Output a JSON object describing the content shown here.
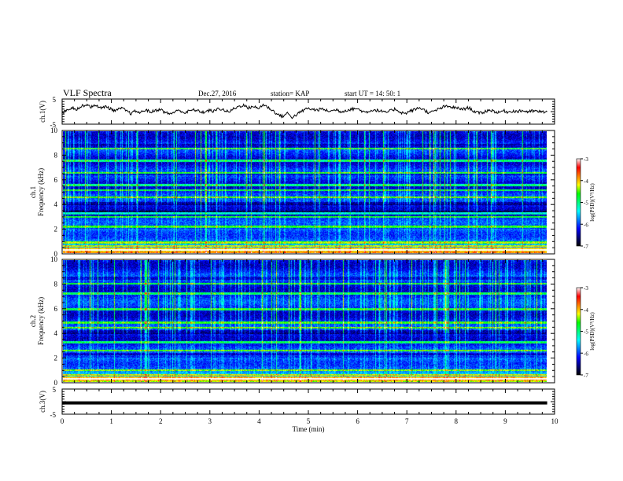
{
  "header": {
    "title": "VLF Spectra",
    "date": "Dec.27, 2016",
    "station": "station= KAP",
    "start": "start  UT =   14: 50: 1"
  },
  "chart_data": [
    {
      "type": "line",
      "panel": "ch.1 waveform",
      "ylabel": "ch.1(V)",
      "ylim": [
        -5,
        5
      ],
      "yticks": [
        "5",
        "-5"
      ],
      "series": [
        {
          "values": [
            -0.6,
            0.8,
            1.6,
            1.0,
            2.1,
            2.9,
            1.8,
            2.6,
            1.2,
            2.2,
            0.9,
            0.3,
            1.4,
            0.5,
            -0.8,
            0.2,
            -0.5,
            0.8,
            -0.2,
            0.4,
            1.0,
            -0.4,
            -0.9,
            -0.1,
            0.6,
            -0.6,
            0.3,
            0.7,
            0.1,
            -0.3,
            0.5,
            0.1,
            1.3,
            0.6,
            -0.2,
            1.1,
            2.0,
            2.6,
            1.4,
            2.2,
            1.1,
            2.8,
            1.7,
            0.4,
            -1.2,
            -1.9,
            -0.6,
            -2.3,
            -1.0,
            0.2,
            1.3,
            0.9,
            0.6,
            1.1,
            0.4,
            0.2,
            0.8,
            -0.1,
            0.6,
            0.9,
            1.3,
            0.4,
            -0.3,
            0.5,
            0.6,
            0.2,
            -0.4,
            0.3,
            1.1,
            -0.2,
            -0.8,
            0.2,
            0.8,
            1.6,
            0.5,
            -0.6,
            0.3,
            1.1,
            2.0,
            1.9,
            1.6,
            1.2,
            1.0,
            1.6,
            0.2,
            -0.6,
            -0.3,
            0.6,
            0.3,
            -0.5,
            0.4,
            -0.2,
            0.3,
            0.0,
            0.4,
            -0.1,
            0.2,
            0.1,
            -0.2,
            0.1
          ]
        }
      ]
    },
    {
      "type": "heatmap",
      "panel": "ch.1 spectrogram",
      "ylabel": "ch.1\nFrequency (kHz)",
      "ylim": [
        0,
        10
      ],
      "yticks": [
        "0",
        "2",
        "4",
        "6",
        "8",
        "10"
      ],
      "colorbar": {
        "label": "log(PSD)(V²/Hz)",
        "range": [
          -7,
          -3
        ],
        "ticks": [
          "-3",
          "-4",
          "-5",
          "-6",
          "-7"
        ]
      },
      "bands_khz": [
        0.3,
        0.6,
        0.9,
        2.2,
        3.0,
        3.3,
        4.6,
        5.2,
        5.6,
        6.6,
        7.6,
        8.6
      ],
      "dark_bands_khz": [
        [
          3.1,
          3.5
        ],
        [
          8.6,
          9.0
        ],
        [
          6.4,
          6.6
        ],
        [
          4.0,
          4.2
        ]
      ],
      "bright_low_khz": [
        0.0,
        0.5
      ]
    },
    {
      "type": "heatmap",
      "panel": "ch.2 spectrogram",
      "ylabel": "ch.2\nFrequency (kHz)",
      "ylim": [
        0,
        10
      ],
      "yticks": [
        "0",
        "2",
        "4",
        "6",
        "8",
        "10"
      ],
      "colorbar": {
        "label": "log(PSD)(V²/Hz)",
        "range": [
          -7,
          -3
        ],
        "ticks": [
          "-3",
          "-4",
          "-5",
          "-6",
          "-7"
        ]
      },
      "bands_khz": [
        0.3,
        0.6,
        1.0,
        2.6,
        3.3,
        4.5,
        4.9,
        6.0,
        7.3,
        8.1
      ],
      "dark_bands_khz": [
        [
          4.0,
          4.3
        ],
        [
          8.4,
          8.7
        ],
        [
          2.2,
          2.4
        ]
      ],
      "bright_low_khz": [
        0.0,
        0.5
      ]
    },
    {
      "type": "line",
      "panel": "ch.3 waveform",
      "ylabel": "ch.3(V)",
      "ylim": [
        -5,
        5
      ],
      "yticks": [
        "5",
        "-5"
      ],
      "series": [
        {
          "values": [
            -0.5,
            -0.5
          ]
        }
      ]
    }
  ],
  "x_axis": {
    "label": "Time (min)",
    "range": [
      0,
      10
    ],
    "ticks": [
      "0",
      "1",
      "2",
      "3",
      "4",
      "5",
      "6",
      "7",
      "8",
      "9",
      "10"
    ],
    "data_end": 9.85
  },
  "colors": {
    "colormap": [
      "#000000",
      "#00007a",
      "#0000ff",
      "#0080ff",
      "#00ffff",
      "#00ff80",
      "#00ff00",
      "#ffff00",
      "#ff8000",
      "#ff0000",
      "#ffffff"
    ],
    "trace": "#000000"
  }
}
